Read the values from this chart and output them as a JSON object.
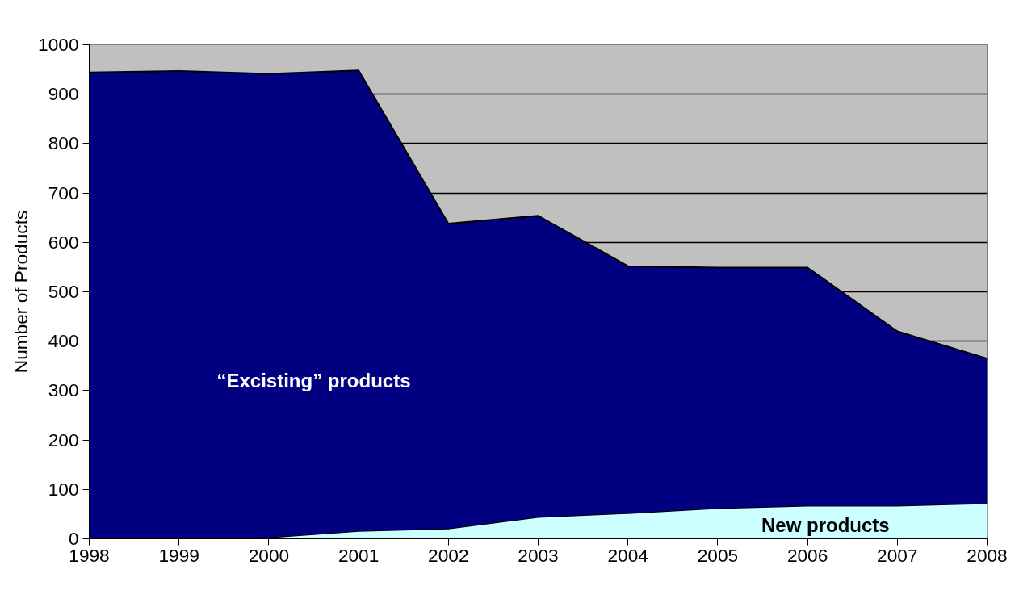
{
  "chart_data": {
    "type": "area",
    "stacked": true,
    "ylabel": "Number of Products",
    "x": [
      1998,
      1999,
      2000,
      2001,
      2002,
      2003,
      2004,
      2005,
      2006,
      2007,
      2008
    ],
    "series": [
      {
        "name": "New products",
        "color": "#ccffff",
        "values": [
          0,
          0,
          3,
          16,
          21,
          44,
          52,
          62,
          67,
          67,
          72
        ]
      },
      {
        "name": "“Excisting” products",
        "color": "#000080",
        "values": [
          944,
          947,
          938,
          932,
          617,
          610,
          500,
          487,
          482,
          353,
          293
        ]
      }
    ],
    "xlim": [
      1998,
      2008
    ],
    "xticks": [
      1998,
      1999,
      2000,
      2001,
      2002,
      2003,
      2004,
      2005,
      2006,
      2007,
      2008
    ],
    "ylim": [
      0,
      1000
    ],
    "yticks": [
      0,
      100,
      200,
      300,
      400,
      500,
      600,
      700,
      800,
      900,
      1000
    ],
    "grid": "y"
  }
}
